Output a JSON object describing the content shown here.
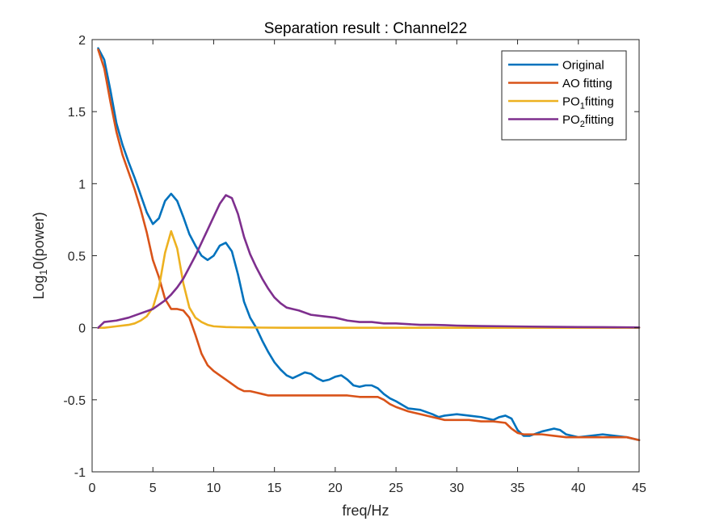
{
  "chart_data": {
    "type": "line",
    "title": "Separation result : Channel22",
    "xlabel": "freq/Hz",
    "ylabel": {
      "prefix": "Log",
      "sub": "1",
      "suffix": "0(power)"
    },
    "xlim": [
      0,
      45
    ],
    "ylim": [
      -1,
      2
    ],
    "xticks": [
      0,
      5,
      10,
      15,
      20,
      25,
      30,
      35,
      40,
      45
    ],
    "yticks": [
      -1,
      -0.5,
      0,
      0.5,
      1,
      1.5,
      2
    ],
    "ytick_labels": [
      "-1",
      "-0.5",
      "0",
      "0.5",
      "1",
      "1.5",
      "2"
    ],
    "grid": false,
    "legend_position": "top-right",
    "series": [
      {
        "name": "Original",
        "legend": {
          "main": "Original",
          "sub": "",
          "tail": ""
        },
        "color": "#0072BD",
        "x": [
          0.5,
          1,
          1.5,
          2,
          2.5,
          3,
          3.5,
          4,
          4.5,
          5,
          5.5,
          6,
          6.5,
          7,
          7.5,
          8,
          8.5,
          9,
          9.5,
          10,
          10.5,
          11,
          11.5,
          12,
          12.5,
          13,
          13.5,
          14,
          14.5,
          15,
          15.5,
          16,
          16.5,
          17,
          17.5,
          18,
          18.5,
          19,
          19.5,
          20,
          20.5,
          21,
          21.5,
          22,
          22.5,
          23,
          23.5,
          24,
          24.5,
          25,
          26,
          27,
          28,
          28.5,
          29,
          30,
          31,
          32,
          33,
          33.5,
          34,
          34.5,
          35,
          35.5,
          36,
          37,
          38,
          38.5,
          39,
          40,
          41,
          42,
          43,
          44,
          45
        ],
        "y": [
          1.94,
          1.86,
          1.65,
          1.42,
          1.27,
          1.15,
          1.04,
          0.92,
          0.8,
          0.72,
          0.76,
          0.88,
          0.93,
          0.88,
          0.77,
          0.65,
          0.57,
          0.5,
          0.47,
          0.5,
          0.57,
          0.59,
          0.53,
          0.37,
          0.18,
          0.07,
          0.0,
          -0.09,
          -0.17,
          -0.24,
          -0.29,
          -0.33,
          -0.35,
          -0.33,
          -0.31,
          -0.32,
          -0.35,
          -0.37,
          -0.36,
          -0.34,
          -0.33,
          -0.36,
          -0.4,
          -0.41,
          -0.4,
          -0.4,
          -0.42,
          -0.46,
          -0.49,
          -0.51,
          -0.56,
          -0.57,
          -0.6,
          -0.62,
          -0.61,
          -0.6,
          -0.61,
          -0.62,
          -0.64,
          -0.62,
          -0.61,
          -0.63,
          -0.71,
          -0.75,
          -0.75,
          -0.72,
          -0.7,
          -0.71,
          -0.74,
          -0.76,
          -0.75,
          -0.74,
          -0.75,
          -0.76,
          -0.78
        ]
      },
      {
        "name": "AO fitting",
        "legend": {
          "main": "AO fitting",
          "sub": "",
          "tail": ""
        },
        "color": "#D95319",
        "x": [
          0.5,
          1,
          1.5,
          2,
          2.5,
          3,
          3.5,
          4,
          4.5,
          5,
          5.5,
          6,
          6.5,
          7,
          7.5,
          8,
          8.5,
          9,
          9.5,
          10,
          10.5,
          11,
          11.5,
          12,
          12.5,
          13,
          13.5,
          14,
          14.5,
          15,
          16,
          17,
          18,
          19,
          20,
          21,
          22,
          23,
          23.5,
          24,
          24.5,
          25,
          26,
          27,
          28,
          28.5,
          29,
          30,
          31,
          32,
          33,
          34,
          34.5,
          35,
          35.5,
          36,
          37,
          38,
          39,
          40,
          41,
          42,
          43,
          44,
          45
        ],
        "y": [
          1.93,
          1.8,
          1.57,
          1.36,
          1.2,
          1.08,
          0.96,
          0.82,
          0.66,
          0.47,
          0.35,
          0.2,
          0.13,
          0.13,
          0.12,
          0.07,
          -0.05,
          -0.18,
          -0.26,
          -0.3,
          -0.33,
          -0.36,
          -0.39,
          -0.42,
          -0.44,
          -0.44,
          -0.45,
          -0.46,
          -0.47,
          -0.47,
          -0.47,
          -0.47,
          -0.47,
          -0.47,
          -0.47,
          -0.47,
          -0.48,
          -0.48,
          -0.48,
          -0.5,
          -0.53,
          -0.55,
          -0.58,
          -0.6,
          -0.62,
          -0.63,
          -0.64,
          -0.64,
          -0.64,
          -0.65,
          -0.65,
          -0.66,
          -0.7,
          -0.73,
          -0.74,
          -0.74,
          -0.74,
          -0.75,
          -0.76,
          -0.76,
          -0.76,
          -0.76,
          -0.76,
          -0.76,
          -0.78
        ]
      },
      {
        "name": "PO1fitting",
        "legend": {
          "main": "PO",
          "sub": "1",
          "tail": "fitting"
        },
        "color": "#EDB120",
        "x": [
          0.5,
          1,
          2,
          3,
          3.5,
          4,
          4.5,
          5,
          5.5,
          6,
          6.5,
          7,
          7.5,
          8,
          8.5,
          9,
          9.5,
          10,
          11,
          12,
          13,
          14,
          16,
          20,
          25,
          30,
          35,
          40,
          45
        ],
        "y": [
          0.0,
          0.0,
          0.01,
          0.02,
          0.03,
          0.05,
          0.08,
          0.14,
          0.28,
          0.52,
          0.67,
          0.55,
          0.31,
          0.14,
          0.07,
          0.04,
          0.02,
          0.01,
          0.005,
          0.003,
          0.002,
          0.001,
          0.0,
          0.0,
          0.0,
          0.0,
          0.0,
          0.0,
          0.0
        ]
      },
      {
        "name": "PO2fitting",
        "legend": {
          "main": "PO",
          "sub": "2",
          "tail": "fitting"
        },
        "color": "#7E2F8E",
        "x": [
          0.5,
          1,
          2,
          3,
          4,
          5,
          5.5,
          6,
          6.5,
          7,
          7.5,
          8,
          8.5,
          9,
          9.5,
          10,
          10.5,
          11,
          11.5,
          12,
          12.5,
          13,
          13.5,
          14,
          14.5,
          15,
          15.5,
          16,
          16.5,
          17,
          18,
          19,
          20,
          21,
          22,
          23,
          24,
          25,
          26,
          27,
          28,
          29,
          30,
          32,
          34,
          36,
          38,
          40,
          42,
          44,
          45
        ],
        "y": [
          0.0,
          0.04,
          0.05,
          0.07,
          0.1,
          0.13,
          0.16,
          0.19,
          0.23,
          0.28,
          0.34,
          0.42,
          0.5,
          0.59,
          0.68,
          0.77,
          0.86,
          0.92,
          0.9,
          0.79,
          0.63,
          0.51,
          0.42,
          0.34,
          0.27,
          0.21,
          0.17,
          0.14,
          0.13,
          0.12,
          0.09,
          0.08,
          0.07,
          0.05,
          0.04,
          0.04,
          0.03,
          0.03,
          0.025,
          0.02,
          0.02,
          0.018,
          0.015,
          0.012,
          0.01,
          0.008,
          0.006,
          0.005,
          0.004,
          0.003,
          0.002
        ]
      }
    ]
  }
}
